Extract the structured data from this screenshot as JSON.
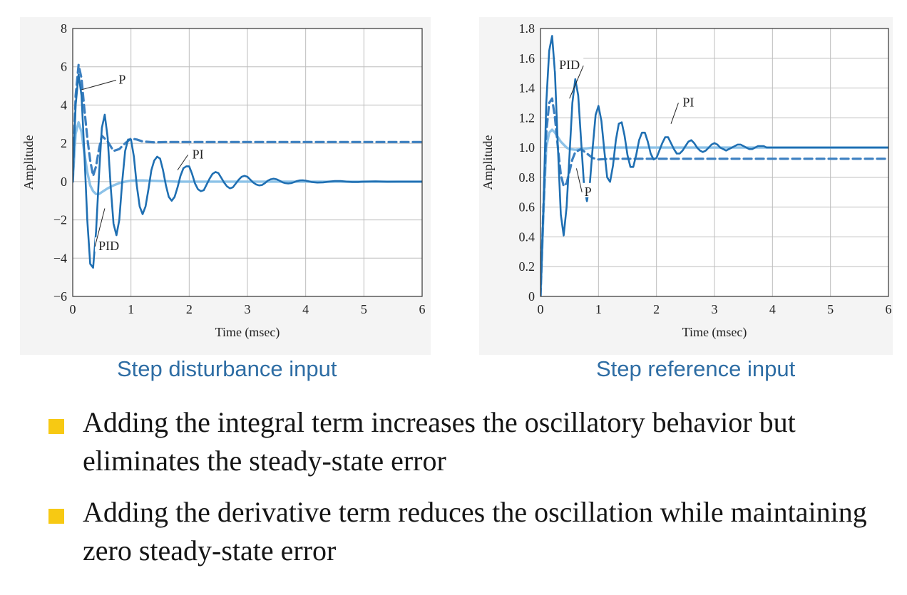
{
  "chart_data": [
    {
      "type": "line",
      "xlabel": "Time (msec)",
      "ylabel": "Amplitude",
      "xlim": [
        0,
        6
      ],
      "ylim": [
        -6,
        8
      ],
      "x_ticks": [
        0,
        1,
        2,
        3,
        4,
        5,
        6
      ],
      "y_ticks": [
        -6,
        -4,
        -2,
        0,
        2,
        4,
        6,
        8
      ],
      "x_tick_labels": [
        "0",
        "1",
        "2",
        "3",
        "4",
        "5",
        "6"
      ],
      "y_tick_labels": [
        "−6",
        "−4",
        "−2",
        "0",
        "2",
        "4",
        "6",
        "8"
      ],
      "grid": true,
      "caption": "Step disturbance input",
      "annotations": [
        {
          "text": "P",
          "x": 0.85,
          "y": 5.3,
          "tx": 0.15,
          "ty": 4.8
        },
        {
          "text": "PI",
          "x": 2.15,
          "y": 1.4,
          "tx": 1.8,
          "ty": 0.6
        },
        {
          "text": "PID",
          "x": 0.62,
          "y": -3.4,
          "tx": 0.55,
          "ty": -1.4
        }
      ],
      "series": [
        {
          "style": "dashed",
          "color": "#3b7fc0",
          "x": [
            0,
            0.05,
            0.1,
            0.15,
            0.2,
            0.25,
            0.3,
            0.35,
            0.4,
            0.45,
            0.5,
            0.6,
            0.7,
            0.8,
            0.9,
            1.0,
            1.1,
            1.2,
            1.4,
            1.6,
            2.0,
            3.0,
            4.0,
            5.0,
            6.0
          ],
          "y": [
            0,
            4.5,
            6.1,
            5.4,
            3.8,
            2.3,
            1.1,
            0.3,
            0.8,
            1.7,
            2.4,
            2.1,
            1.6,
            1.7,
            2.0,
            2.25,
            2.2,
            2.1,
            2.05,
            2.07,
            2.07,
            2.07,
            2.07,
            2.07,
            2.07
          ]
        },
        {
          "style": "solid",
          "color": "#1f6fb2",
          "x": [
            0,
            0.05,
            0.1,
            0.15,
            0.2,
            0.25,
            0.3,
            0.35,
            0.4,
            0.45,
            0.5,
            0.55,
            0.6,
            0.65,
            0.7,
            0.75,
            0.8,
            0.85,
            0.9,
            0.95,
            1.0,
            1.05,
            1.1,
            1.15,
            1.2,
            1.25,
            1.3,
            1.35,
            1.4,
            1.45,
            1.5,
            1.55,
            1.6,
            1.65,
            1.7,
            1.75,
            1.8,
            1.85,
            1.9,
            1.95,
            2.0,
            2.05,
            2.1,
            2.15,
            2.2,
            2.25,
            2.3,
            2.35,
            2.4,
            2.45,
            2.5,
            2.55,
            2.6,
            2.65,
            2.7,
            2.75,
            2.8,
            2.85,
            2.9,
            2.95,
            3.0,
            3.05,
            3.1,
            3.15,
            3.2,
            3.25,
            3.3,
            3.35,
            3.4,
            3.45,
            3.5,
            3.55,
            3.6,
            3.65,
            3.7,
            3.75,
            3.8,
            3.85,
            3.9,
            3.95,
            4.0,
            4.1,
            4.2,
            4.3,
            4.4,
            4.5,
            4.6,
            4.7,
            4.8,
            4.9,
            5.0,
            5.2,
            5.4,
            5.6,
            5.8,
            6.0
          ],
          "y": [
            0,
            4.0,
            5.6,
            4.5,
            1.5,
            -2.0,
            -4.3,
            -4.5,
            -2.6,
            0.3,
            2.8,
            3.5,
            2.3,
            -0.2,
            -2.2,
            -2.8,
            -2.0,
            0.0,
            1.6,
            2.2,
            2.2,
            1.3,
            -0.2,
            -1.3,
            -1.7,
            -1.3,
            -0.4,
            0.6,
            1.1,
            1.3,
            1.2,
            0.6,
            -0.2,
            -0.8,
            -1.0,
            -0.8,
            -0.3,
            0.3,
            0.7,
            0.8,
            0.8,
            0.4,
            -0.1,
            -0.4,
            -0.5,
            -0.45,
            -0.15,
            0.15,
            0.4,
            0.5,
            0.45,
            0.2,
            -0.05,
            -0.25,
            -0.35,
            -0.3,
            -0.1,
            0.1,
            0.25,
            0.3,
            0.25,
            0.1,
            -0.05,
            -0.15,
            -0.2,
            -0.18,
            -0.08,
            0.05,
            0.12,
            0.15,
            0.12,
            0.05,
            -0.03,
            -0.08,
            -0.1,
            -0.08,
            -0.03,
            0.03,
            0.06,
            0.07,
            0.05,
            -0.02,
            -0.05,
            -0.04,
            0.0,
            0.03,
            0.03,
            0.0,
            -0.02,
            -0.02,
            0.0,
            0.01,
            -0.01,
            0.0,
            0.0,
            0.0
          ]
        },
        {
          "style": "solid",
          "color": "#8cc2e8",
          "x": [
            0,
            0.05,
            0.1,
            0.15,
            0.2,
            0.25,
            0.3,
            0.35,
            0.4,
            0.45,
            0.5,
            0.55,
            0.6,
            0.7,
            0.8,
            0.9,
            1.0,
            1.2,
            1.4,
            1.6,
            1.8,
            2.0,
            2.5,
            3.0,
            4.0,
            5.0,
            6.0
          ],
          "y": [
            0,
            2.5,
            3.1,
            2.6,
            1.5,
            0.5,
            -0.2,
            -0.5,
            -0.65,
            -0.65,
            -0.55,
            -0.45,
            -0.35,
            -0.2,
            -0.08,
            0.0,
            0.05,
            0.06,
            0.04,
            0.02,
            0.0,
            0.0,
            0.0,
            0.0,
            0.0,
            0.0,
            0.0
          ]
        }
      ]
    },
    {
      "type": "line",
      "xlabel": "Time (msec)",
      "ylabel": "Amplitude",
      "xlim": [
        0,
        6
      ],
      "ylim": [
        0,
        1.8
      ],
      "x_ticks": [
        0,
        1,
        2,
        3,
        4,
        5,
        6
      ],
      "y_ticks": [
        0,
        0.2,
        0.4,
        0.6,
        0.8,
        1.0,
        1.2,
        1.4,
        1.6,
        1.8
      ],
      "x_tick_labels": [
        "0",
        "1",
        "2",
        "3",
        "4",
        "5",
        "6"
      ],
      "y_tick_labels": [
        "0",
        "0.2",
        "0.4",
        "0.6",
        "0.8",
        "1.0",
        "1.2",
        "1.4",
        "1.6",
        "1.8"
      ],
      "grid": true,
      "caption": "Step reference input",
      "annotations": [
        {
          "text": "PID",
          "x": 0.5,
          "y": 1.55,
          "tx": 0.5,
          "ty": 1.33
        },
        {
          "text": "PI",
          "x": 2.55,
          "y": 1.3,
          "tx": 2.25,
          "ty": 1.16
        },
        {
          "text": "P",
          "x": 0.82,
          "y": 0.7,
          "tx": 0.62,
          "ty": 0.86
        }
      ],
      "series": [
        {
          "style": "dashed",
          "color": "#3b7fc0",
          "x": [
            0,
            0.05,
            0.1,
            0.15,
            0.2,
            0.25,
            0.3,
            0.35,
            0.4,
            0.45,
            0.5,
            0.55,
            0.6,
            0.7,
            0.8,
            0.9,
            1.0,
            1.2,
            1.5,
            2.0,
            3.0,
            4.0,
            5.0,
            6.0
          ],
          "y": [
            0,
            0.6,
            1.1,
            1.3,
            1.33,
            1.2,
            1.0,
            0.82,
            0.74,
            0.76,
            0.84,
            0.92,
            0.97,
            0.99,
            0.96,
            0.93,
            0.92,
            0.925,
            0.925,
            0.925,
            0.925,
            0.925,
            0.925,
            0.925
          ]
        },
        {
          "style": "solid",
          "color": "#1f6fb2",
          "x": [
            0,
            0.05,
            0.1,
            0.15,
            0.2,
            0.25,
            0.3,
            0.35,
            0.4,
            0.45,
            0.5,
            0.55,
            0.6,
            0.65,
            0.7,
            0.75,
            0.8,
            0.85,
            0.9,
            0.95,
            1.0,
            1.05,
            1.1,
            1.15,
            1.2,
            1.25,
            1.3,
            1.35,
            1.4,
            1.45,
            1.5,
            1.55,
            1.6,
            1.65,
            1.7,
            1.75,
            1.8,
            1.85,
            1.9,
            1.95,
            2.0,
            2.05,
            2.1,
            2.15,
            2.2,
            2.25,
            2.3,
            2.35,
            2.4,
            2.45,
            2.5,
            2.55,
            2.6,
            2.65,
            2.7,
            2.75,
            2.8,
            2.85,
            2.9,
            2.95,
            3.0,
            3.05,
            3.1,
            3.15,
            3.2,
            3.25,
            3.3,
            3.35,
            3.4,
            3.45,
            3.5,
            3.55,
            3.6,
            3.65,
            3.7,
            3.75,
            3.8,
            3.85,
            3.9,
            3.95,
            4.0,
            4.1,
            4.2,
            4.3,
            4.4,
            4.5,
            4.6,
            4.7,
            4.8,
            4.9,
            5.0,
            5.2,
            5.4,
            5.6,
            5.8,
            6.0
          ],
          "y": [
            0,
            0.6,
            1.3,
            1.65,
            1.75,
            1.5,
            1.0,
            0.55,
            0.41,
            0.6,
            0.95,
            1.3,
            1.46,
            1.35,
            1.05,
            0.75,
            0.64,
            0.75,
            1.0,
            1.22,
            1.28,
            1.18,
            0.98,
            0.8,
            0.77,
            0.88,
            1.05,
            1.16,
            1.17,
            1.08,
            0.95,
            0.87,
            0.87,
            0.95,
            1.05,
            1.1,
            1.1,
            1.04,
            0.96,
            0.92,
            0.93,
            0.98,
            1.03,
            1.07,
            1.07,
            1.03,
            0.99,
            0.96,
            0.96,
            0.98,
            1.01,
            1.04,
            1.05,
            1.03,
            1.0,
            0.98,
            0.97,
            0.98,
            1.0,
            1.02,
            1.03,
            1.02,
            1.0,
            0.99,
            0.98,
            0.99,
            1.0,
            1.01,
            1.02,
            1.02,
            1.01,
            1.0,
            0.99,
            0.99,
            1.0,
            1.01,
            1.01,
            1.01,
            1.0,
            1.0,
            1.0,
            1.0,
            1.0,
            1.0,
            1.0,
            1.0,
            1.0,
            1.0,
            1.0,
            1.0,
            1.0,
            1.0,
            1.0,
            1.0,
            1.0,
            1.0
          ]
        },
        {
          "style": "solid",
          "color": "#8cc2e8",
          "x": [
            0,
            0.05,
            0.1,
            0.15,
            0.2,
            0.25,
            0.3,
            0.35,
            0.4,
            0.45,
            0.5,
            0.6,
            0.7,
            0.8,
            0.9,
            1.0,
            1.2,
            1.5,
            2.0,
            3.0,
            4.0,
            5.0,
            6.0
          ],
          "y": [
            0,
            0.55,
            1.0,
            1.1,
            1.12,
            1.1,
            1.07,
            1.04,
            1.02,
            1.0,
            0.99,
            0.985,
            0.99,
            0.995,
            1.0,
            1.0,
            1.0,
            1.0,
            1.0,
            1.0,
            1.0,
            1.0,
            1.0
          ]
        }
      ]
    }
  ],
  "captions": {
    "left": "Step disturbance input",
    "right": "Step reference input"
  },
  "bullets": [
    {
      "text": "Adding the integral term increases the oscillatory behavior but eliminates the steady-state error"
    },
    {
      "text": "Adding the derivative term reduces the oscillation while maintaining zero steady-state error"
    }
  ],
  "colors": {
    "caption": "#2e6da4",
    "bullet": "#f7c913",
    "panel_background": "#f4f4f4",
    "grid": "#bdbdbd"
  }
}
